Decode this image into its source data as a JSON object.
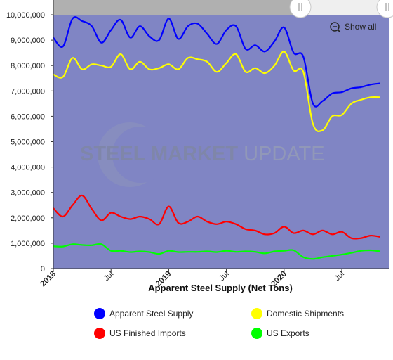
{
  "chart_data": {
    "type": "line",
    "xlabel": "Apparent Steel Supply (Net Tons)",
    "ylabel": "",
    "ylim": [
      0,
      10000000
    ],
    "x_ticks": [
      {
        "label": "2018",
        "bold": true,
        "t": 0
      },
      {
        "label": "Jul",
        "bold": false,
        "t": 6
      },
      {
        "label": "2019",
        "bold": true,
        "t": 12
      },
      {
        "label": "Jul",
        "bold": false,
        "t": 18
      },
      {
        "label": "2020",
        "bold": true,
        "t": 24
      },
      {
        "label": "Jul",
        "bold": false,
        "t": 30
      }
    ],
    "y_tick_labels": [
      "0",
      "1,000,000",
      "2,000,000",
      "3,000,000",
      "4,000,000",
      "5,000,000",
      "6,000,000",
      "7,000,000",
      "8,000,000",
      "9,000,000",
      "10,000,000"
    ],
    "x": [
      "2018-01",
      "2018-02",
      "2018-03",
      "2018-04",
      "2018-05",
      "2018-06",
      "2018-07",
      "2018-08",
      "2018-09",
      "2018-10",
      "2018-11",
      "2018-12",
      "2019-01",
      "2019-02",
      "2019-03",
      "2019-04",
      "2019-05",
      "2019-06",
      "2019-07",
      "2019-08",
      "2019-09",
      "2019-10",
      "2019-11",
      "2019-12",
      "2020-01",
      "2020-02",
      "2020-03",
      "2020-04",
      "2020-05",
      "2020-06",
      "2020-07",
      "2020-08",
      "2020-09",
      "2020-10",
      "2020-11"
    ],
    "series": [
      {
        "name": "Apparent Steel Supply",
        "color": "#0000ff",
        "values": [
          9100000,
          8750000,
          9850000,
          9750000,
          9550000,
          8900000,
          9400000,
          9800000,
          9100000,
          9550000,
          9150000,
          9000000,
          9850000,
          9050000,
          9550000,
          9650000,
          9250000,
          8850000,
          9400000,
          9550000,
          8650000,
          8800000,
          8550000,
          8950000,
          9500000,
          8500000,
          8350000,
          6500000,
          6600000,
          6900000,
          6950000,
          7100000,
          7150000,
          7250000,
          7300000
        ]
      },
      {
        "name": "Domestic Shipments",
        "color": "#ffff00",
        "values": [
          7650000,
          7550000,
          8300000,
          7850000,
          8050000,
          8000000,
          7950000,
          8450000,
          7850000,
          8150000,
          7850000,
          7900000,
          8050000,
          7850000,
          8300000,
          8250000,
          8150000,
          7750000,
          8100000,
          8450000,
          7750000,
          7900000,
          7700000,
          8000000,
          8550000,
          7800000,
          7750000,
          5700000,
          5450000,
          6000000,
          6050000,
          6500000,
          6650000,
          6750000,
          6750000
        ]
      },
      {
        "name": "US Finished Imports",
        "color": "#ff0000",
        "values": [
          2380000,
          2050000,
          2500000,
          2880000,
          2350000,
          1900000,
          2200000,
          2050000,
          1950000,
          2050000,
          1950000,
          1750000,
          2450000,
          1800000,
          1850000,
          2050000,
          1850000,
          1750000,
          1850000,
          1750000,
          1550000,
          1500000,
          1350000,
          1400000,
          1650000,
          1400000,
          1500000,
          1350000,
          1500000,
          1350000,
          1450000,
          1200000,
          1200000,
          1300000,
          1250000
        ]
      },
      {
        "name": "US Exports",
        "color": "#00ff00",
        "values": [
          880000,
          870000,
          960000,
          930000,
          920000,
          960000,
          700000,
          700000,
          650000,
          680000,
          650000,
          580000,
          700000,
          650000,
          660000,
          660000,
          680000,
          650000,
          700000,
          660000,
          680000,
          660000,
          600000,
          680000,
          700000,
          720000,
          450000,
          380000,
          450000,
          500000,
          550000,
          620000,
          700000,
          720000,
          680000
        ]
      }
    ],
    "legend": {
      "placement": "bottom"
    },
    "zoom": {
      "show_all_label": "Show all",
      "shaded_region": "top"
    }
  },
  "watermark": {
    "bold": "STEEL MARKET",
    "light": " UPDATE"
  },
  "colors": {
    "plot_bg": "#8085c4",
    "shade": "#b0b0b0",
    "axis": "#333333"
  }
}
